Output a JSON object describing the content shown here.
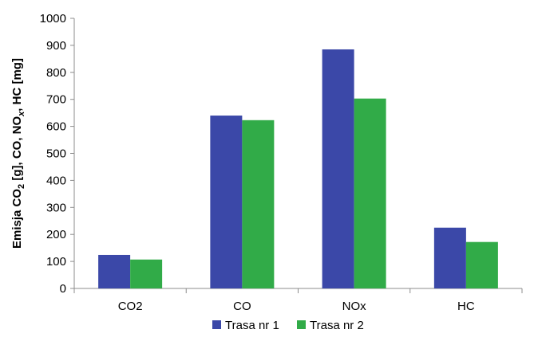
{
  "chart_data": {
    "type": "bar",
    "categories": [
      "CO2",
      "CO",
      "NOx",
      "HC"
    ],
    "series": [
      {
        "name": "Trasa nr 1",
        "color": "#3b48a8",
        "values": [
          124,
          640,
          885,
          225
        ]
      },
      {
        "name": "Trasa nr 2",
        "color": "#31ab48",
        "values": [
          107,
          623,
          703,
          172
        ]
      }
    ],
    "ylim": [
      0,
      1000
    ],
    "yticks": [
      0,
      100,
      200,
      300,
      400,
      500,
      600,
      700,
      800,
      900,
      1000
    ],
    "ylabel": {
      "parts": [
        {
          "text": "Emisja CO",
          "style": "normal"
        },
        {
          "text": "2",
          "style": "sub"
        },
        {
          "text": " [g], CO, NO",
          "style": "normal"
        },
        {
          "text": "x",
          "style": "sub-italic"
        },
        {
          "text": ", HC [mg]",
          "style": "normal"
        }
      ]
    },
    "xlabel": "",
    "title": "",
    "legend_position": "bottom-center",
    "grid": false
  }
}
